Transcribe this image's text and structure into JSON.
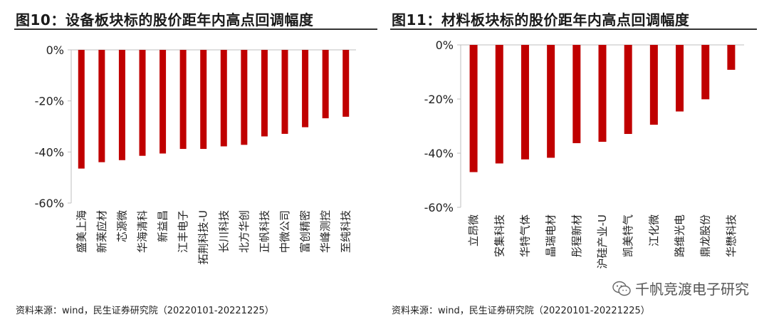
{
  "colors": {
    "bar": "#c00000",
    "axis": "#bfbfbf",
    "text": "#222222",
    "title_rule": "#333333"
  },
  "chart_data": [
    {
      "type": "bar",
      "title": "图10：设备板块标的股价距年内高点回调幅度",
      "source": "资料来源：wind，民生证券研究院（20220101-20221225）",
      "categories": [
        "盛美上海",
        "新莱应材",
        "芯源微",
        "华海清科",
        "新益昌",
        "江丰电子",
        "拓荆科技-U",
        "长川科技",
        "北方华创",
        "正帆科技",
        "中微公司",
        "富创精密",
        "华峰测控",
        "至纯科技"
      ],
      "values": [
        -46.5,
        -44,
        -43.2,
        -41.5,
        -40.6,
        -38.8,
        -38.8,
        -37.8,
        -37.2,
        -33.9,
        -32.9,
        -30.3,
        -26.8,
        -26.2
      ],
      "yticks": [
        0,
        -20,
        -40,
        -60
      ],
      "ytick_labels": [
        "0%",
        "-20%",
        "-40%",
        "-60%"
      ],
      "ylim": [
        -60,
        0
      ],
      "xlabel": "",
      "ylabel": ""
    },
    {
      "type": "bar",
      "title": "图11：材料板块标的股价距年内高点回调幅度",
      "source": "资料来源：wind，民生证券研究院（20220101-20221225）",
      "categories": [
        "立昂微",
        "安集科技",
        "华特气体",
        "晶瑞电材",
        "彤程新材",
        "沪硅产业-U",
        "凯美特气",
        "江化微",
        "路维光电",
        "鼎龙股份",
        "华懋科技"
      ],
      "values": [
        -47,
        -43.8,
        -42.3,
        -41.7,
        -36.3,
        -35.8,
        -32.9,
        -29.5,
        -24.6,
        -20.1,
        -9.2
      ],
      "yticks": [
        0,
        -20,
        -40,
        -60
      ],
      "ytick_labels": [
        "0%",
        "-20%",
        "-40%",
        "-60%"
      ],
      "ylim": [
        -60,
        0
      ],
      "xlabel": "",
      "ylabel": ""
    }
  ],
  "watermark": {
    "text": "千帆竞渡电子研究",
    "icon": "wechat-icon"
  }
}
